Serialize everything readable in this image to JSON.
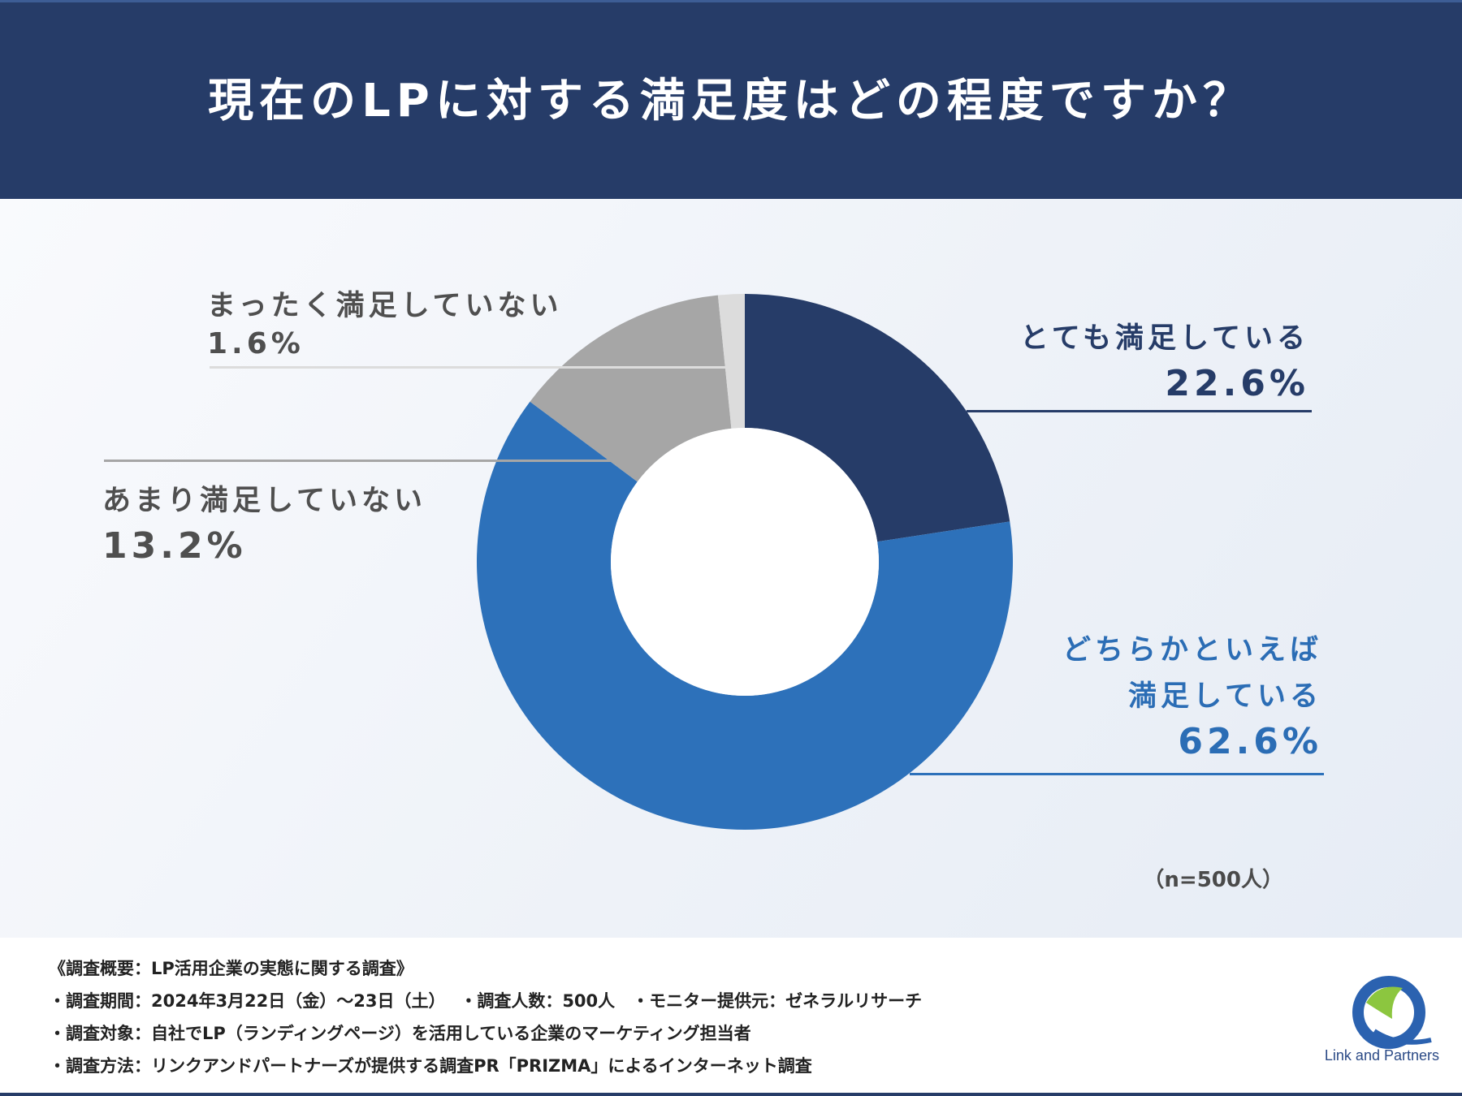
{
  "title": "現在のLPに対する満足度はどの程度ですか？",
  "chart_data": {
    "type": "pie",
    "style": "donut",
    "categories": [
      "とても満足している",
      "どちらかといえば満足している",
      "あまり満足していない",
      "まったく満足していない"
    ],
    "values": [
      22.6,
      62.6,
      13.2,
      1.6
    ],
    "value_labels": [
      "22.6%",
      "62.6%",
      "13.2%",
      "1.6%"
    ],
    "colors": [
      "#263c68",
      "#2d71ba",
      "#a6a6a6",
      "#dcdcdc"
    ],
    "unit": "%"
  },
  "labels": {
    "very": {
      "name": "とても満足している",
      "value": "22.6%"
    },
    "somewhat": {
      "line1": "どちらかといえば",
      "line2": "満足している",
      "value": "62.6%"
    },
    "notvery": {
      "name": "あまり満足していない",
      "value": "13.2%"
    },
    "notatall": {
      "name": "まったく満足していない",
      "value": "1.6%"
    }
  },
  "sample_note": "（n=500人）",
  "survey": {
    "overview": "《調査概要：LP活用企業の実態に関する調査》",
    "period": "・調査期間：2024年3月22日（金）〜23日（土）　 ・調査人数：500人　・モニター提供元：ゼネラルリサーチ",
    "target": "・調査対象：自社でLP（ランディングページ）を活用している企業のマーケティング担当者",
    "method": "・調査方法：リンクアンドパートナーズが提供する調査PR「PRIZMA」によるインターネット調査"
  },
  "logo": {
    "text": "Link and Partners"
  }
}
